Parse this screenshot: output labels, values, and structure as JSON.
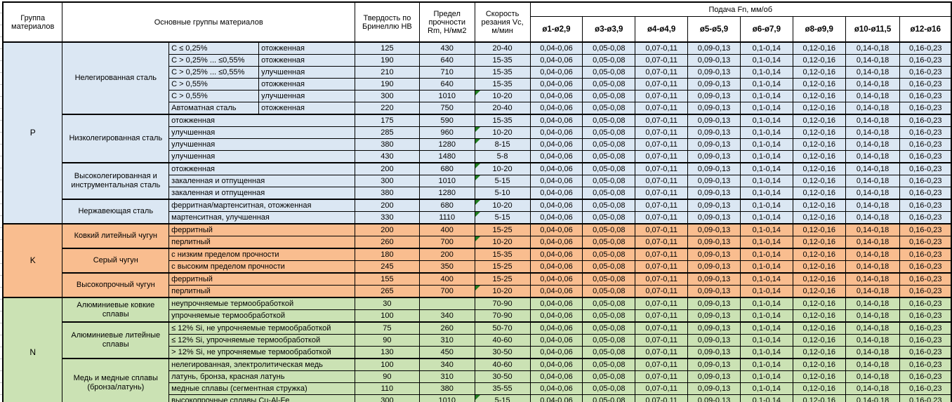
{
  "header": {
    "col_group": "Группа материалов",
    "col_main_groups": "Основные группы материалов",
    "col_hardness": "Твердость по Бринеллю HB",
    "col_strength": "Предел прочности Rm, Н/мм2",
    "col_speed": "Скорость резания Vc, м/мин",
    "feed_title": "Подача Fn, мм/об",
    "feed_columns": [
      "ø1-ø2,9",
      "ø3-ø3,9",
      "ø4-ø4,9",
      "ø5-ø5,9",
      "ø6-ø7,9",
      "ø8-ø9,9",
      "ø10-ø11,5",
      "ø12-ø16"
    ]
  },
  "feed_values": [
    "0,04-0,06",
    "0,05-0,08",
    "0,07-0,11",
    "0,09-0,13",
    "0,1-0,14",
    "0,12-0,16",
    "0,14-0,18",
    "0,16-0,23"
  ],
  "colors": {
    "group_p_blue": "#dbe7f3",
    "group_k_orange": "#f9bd8f",
    "group_n_green": "#cbe2b4",
    "comment_marker_green": "#1f7d1f",
    "border_black": "#000000"
  },
  "groups": [
    {
      "letter": "P",
      "subgroups": [
        {
          "name": "Нелегированная сталь",
          "rows": [
            {
              "spec": [
                "C ≤ 0,25%",
                "отожженная"
              ],
              "hb": "125",
              "rm": "430",
              "vc": "20-40",
              "note": false
            },
            {
              "spec": [
                "C > 0,25% ... ≤0,55%",
                "отожженная"
              ],
              "hb": "190",
              "rm": "640",
              "vc": "15-35",
              "note": false
            },
            {
              "spec": [
                "C > 0,25% ... ≤0,55%",
                "улучшенная"
              ],
              "hb": "210",
              "rm": "710",
              "vc": "15-35",
              "note": false
            },
            {
              "spec": [
                "C > 0,55%",
                "отожженная"
              ],
              "hb": "190",
              "rm": "640",
              "vc": "15-35",
              "note": false
            },
            {
              "spec": [
                "C > 0,55%",
                "улучшенная"
              ],
              "hb": "300",
              "rm": "1010",
              "vc": "10-20",
              "note": true
            },
            {
              "spec": [
                "Автоматная сталь",
                "отожженная"
              ],
              "hb": "220",
              "rm": "750",
              "vc": "20-40",
              "note": false
            }
          ]
        },
        {
          "name": "Низколегированная сталь",
          "rows": [
            {
              "spec": [
                "отожженная"
              ],
              "hb": "175",
              "rm": "590",
              "vc": "15-35",
              "note": false
            },
            {
              "spec": [
                "улучшенная"
              ],
              "hb": "285",
              "rm": "960",
              "vc": "10-20",
              "note": true
            },
            {
              "spec": [
                "улучшенная"
              ],
              "hb": "380",
              "rm": "1280",
              "vc": "8-15",
              "note": true
            },
            {
              "spec": [
                "улучшенная"
              ],
              "hb": "430",
              "rm": "1480",
              "vc": "5-8",
              "note": false
            }
          ]
        },
        {
          "name": "Высоколегированная и инструментальная сталь",
          "rows": [
            {
              "spec": [
                "отожженная"
              ],
              "hb": "200",
              "rm": "680",
              "vc": "10-20",
              "note": true
            },
            {
              "spec": [
                "закаленная и отпущенная"
              ],
              "hb": "300",
              "rm": "1010",
              "vc": "5-15",
              "note": true
            },
            {
              "spec": [
                "закаленная и отпущенная"
              ],
              "hb": "380",
              "rm": "1280",
              "vc": "5-10",
              "note": false
            }
          ]
        },
        {
          "name": "Нержавеющая сталь",
          "rows": [
            {
              "spec": [
                "ферритная/мартенситная, отожженная"
              ],
              "hb": "200",
              "rm": "680",
              "vc": "10-20",
              "note": true
            },
            {
              "spec": [
                "мартенситная, улучшенная"
              ],
              "hb": "330",
              "rm": "1110",
              "vc": "5-15",
              "note": true
            }
          ]
        }
      ]
    },
    {
      "letter": "K",
      "subgroups": [
        {
          "name": "Ковкий литейный чугун",
          "rows": [
            {
              "spec": [
                "ферритный"
              ],
              "hb": "200",
              "rm": "400",
              "vc": "15-25",
              "note": false
            },
            {
              "spec": [
                "перлитный"
              ],
              "hb": "260",
              "rm": "700",
              "vc": "10-20",
              "note": true
            }
          ]
        },
        {
          "name": "Серый чугун",
          "rows": [
            {
              "spec": [
                "с низким пределом прочности"
              ],
              "hb": "180",
              "rm": "200",
              "vc": "15-35",
              "note": false
            },
            {
              "spec": [
                "с высоким пределом прочности"
              ],
              "hb": "245",
              "rm": "350",
              "vc": "15-25",
              "note": false
            }
          ]
        },
        {
          "name": "Высокопрочный чугун",
          "rows": [
            {
              "spec": [
                "ферритный"
              ],
              "hb": "155",
              "rm": "400",
              "vc": "15-25",
              "note": false
            },
            {
              "spec": [
                "перлитный"
              ],
              "hb": "265",
              "rm": "700",
              "vc": "10-20",
              "note": true
            }
          ]
        }
      ]
    },
    {
      "letter": "N",
      "subgroups": [
        {
          "name": "Алюминиевые ковкие сплавы",
          "rows": [
            {
              "spec": [
                "неупрочняемые термообработкой"
              ],
              "hb": "30",
              "rm": "",
              "vc": "70-90",
              "note": false
            },
            {
              "spec": [
                "упрочняемые термообработкой"
              ],
              "hb": "100",
              "rm": "340",
              "vc": "70-90",
              "note": false
            }
          ]
        },
        {
          "name": "Алюминиевые литейные сплавы",
          "rows": [
            {
              "spec": [
                "≤ 12% Si, не упрочняемые термообработкой"
              ],
              "hb": "75",
              "rm": "260",
              "vc": "50-70",
              "note": false
            },
            {
              "spec": [
                "≤ 12% Si, упрочняемые термообработкой"
              ],
              "hb": "90",
              "rm": "310",
              "vc": "40-60",
              "note": false
            },
            {
              "spec": [
                "> 12% Si, не упрочняемые термообработкой"
              ],
              "hb": "130",
              "rm": "450",
              "vc": "30-50",
              "note": false
            }
          ]
        },
        {
          "name": "Медь и медные сплавы (бронза/латунь)",
          "rows": [
            {
              "spec": [
                "нелегированная, электролитическая медь"
              ],
              "hb": "100",
              "rm": "340",
              "vc": "40-60",
              "note": false
            },
            {
              "spec": [
                "латунь, бронза, красная латунь"
              ],
              "hb": "90",
              "rm": "310",
              "vc": "30-50",
              "note": false
            },
            {
              "spec": [
                "медные сплавы (сегментная стружка)"
              ],
              "hb": "110",
              "rm": "380",
              "vc": "35-55",
              "note": false
            },
            {
              "spec": [
                "высокопрочные сплавы Cu-Al-Fe"
              ],
              "hb": "300",
              "rm": "1010",
              "vc": "5-15",
              "note": true
            }
          ]
        }
      ]
    }
  ]
}
